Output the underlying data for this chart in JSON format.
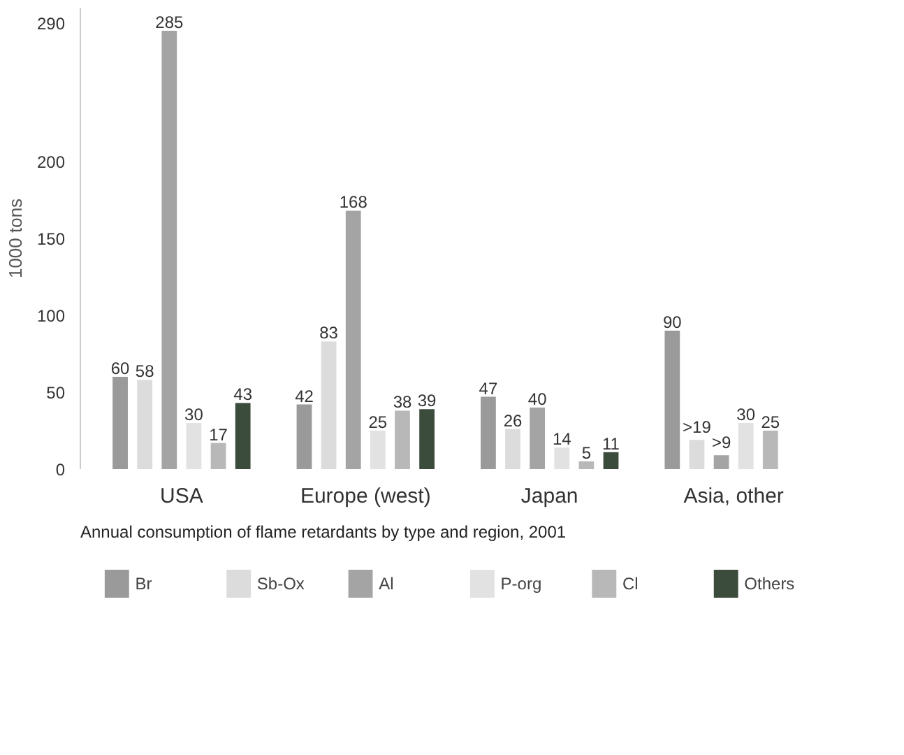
{
  "chart_data": {
    "type": "bar",
    "title": "Annual consumption of flame retardants by type and region, 2001",
    "ylabel": "1000 tons",
    "categories": [
      "USA",
      "Europe (west)",
      "Japan",
      "Asia, other"
    ],
    "series": [
      {
        "name": "Br",
        "color": "#9a9a9a",
        "values": [
          60,
          42,
          47,
          90
        ],
        "value_labels": [
          "60",
          "42",
          "47",
          "90"
        ]
      },
      {
        "name": "Sb-Ox",
        "color": "#dcdcdc",
        "values": [
          58,
          83,
          26,
          19
        ],
        "value_labels": [
          "58",
          "83",
          "26",
          ">19"
        ]
      },
      {
        "name": "Al",
        "color": "#a4a4a4",
        "values": [
          285,
          168,
          40,
          9
        ],
        "value_labels": [
          "285",
          "168",
          "40",
          ">9"
        ]
      },
      {
        "name": "P-org",
        "color": "#e2e2e2",
        "values": [
          30,
          25,
          14,
          30
        ],
        "value_labels": [
          "30",
          "25",
          "14",
          "30"
        ]
      },
      {
        "name": "Cl",
        "color": "#b8b8b8",
        "values": [
          17,
          38,
          5,
          25
        ],
        "value_labels": [
          "17",
          "38",
          "5",
          "25"
        ]
      },
      {
        "name": "Others",
        "color": "#3c4c3c",
        "values": [
          43,
          39,
          11,
          null
        ],
        "value_labels": [
          "43",
          "39",
          "11",
          null
        ]
      }
    ],
    "ylim": [
      0,
      300
    ],
    "yticks": [
      0,
      50,
      100,
      150,
      200,
      290
    ],
    "grid": false,
    "legend": "bottom"
  }
}
